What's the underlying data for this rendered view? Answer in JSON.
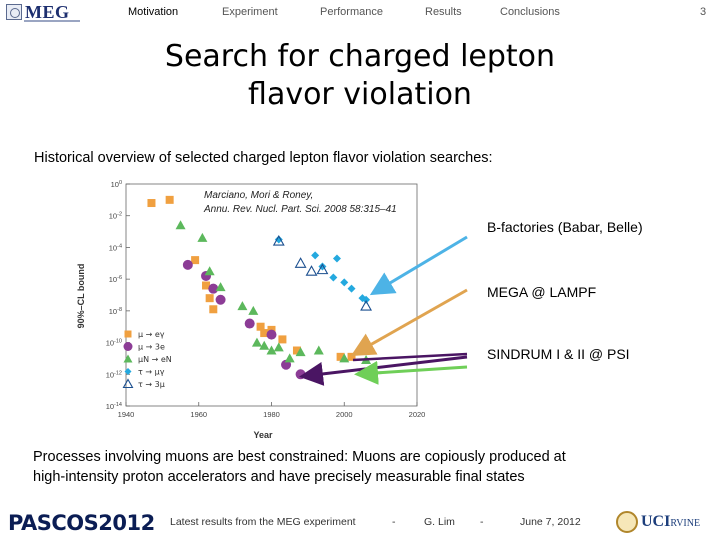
{
  "logo": {
    "text": "MEG"
  },
  "nav": [
    "Motivation",
    "Experiment",
    "Performance",
    "Results",
    "Conclusions"
  ],
  "page_number": "3",
  "title_lines": [
    "Search for charged lepton",
    "flavor violation"
  ],
  "subtitle": "Historical overview of selected charged lepton flavor violation searches:",
  "labels": {
    "bfactories": "B-factories (Babar, Belle)",
    "mega": "MEGA @ LAMPF",
    "sindrum": "SINDRUM I & II @ PSI"
  },
  "colors": {
    "bfactories_arrow": "#4db3e6",
    "mega_arrow": "#e0a450",
    "sindrum_arrow": "#6fcf58",
    "meg_arrow": "#4a1563",
    "mu_egamma": "#f0a040",
    "mu_3e": "#8c3c96",
    "mu_n_en": "#5cb85c",
    "tau_mugamma": "#24a9df",
    "tau_3mu": "#24a9df"
  },
  "chart_data": {
    "type": "scatter",
    "title": "",
    "citation": [
      "Marciano, Mori & Roney,",
      "Annu. Rev. Nucl. Part. Sci. 2008 58:315–41"
    ],
    "xlabel": "Year",
    "ylabel": "90%–CL bound",
    "xlim": [
      1940,
      2020
    ],
    "ylim_log10": [
      -14,
      0
    ],
    "x_ticks": [
      "1940",
      "1960",
      "1980",
      "2000",
      "2020"
    ],
    "y_ticks": [
      "10^0",
      "10^-2",
      "10^-4",
      "10^-6",
      "10^-8",
      "10^-10",
      "10^-12",
      "10^-14"
    ],
    "legend": [
      {
        "symbol": "square",
        "text": "μ → eγ"
      },
      {
        "symbol": "circle",
        "text": "μ → 3e"
      },
      {
        "symbol": "triangle",
        "text": "μN → eN"
      },
      {
        "symbol": "diamond",
        "text": "τ → μγ"
      },
      {
        "symbol": "open-triangle",
        "text": "τ → 3μ"
      }
    ],
    "series": [
      {
        "name": "μ → eγ",
        "symbol": "square",
        "points": [
          [
            1947,
            -1.2
          ],
          [
            1952,
            -1.0
          ],
          [
            1959,
            -4.8
          ],
          [
            1962,
            -6.4
          ],
          [
            1963,
            -7.2
          ],
          [
            1964,
            -7.9
          ],
          [
            1977,
            -9.0
          ],
          [
            1978,
            -9.4
          ],
          [
            1980,
            -9.2
          ],
          [
            1983,
            -9.8
          ],
          [
            1987,
            -10.5
          ],
          [
            1999,
            -10.9
          ],
          [
            2002,
            -10.9
          ]
        ]
      },
      {
        "name": "μ → 3e",
        "symbol": "circle",
        "points": [
          [
            1957,
            -5.1
          ],
          [
            1962,
            -5.8
          ],
          [
            1964,
            -6.6
          ],
          [
            1966,
            -7.3
          ],
          [
            1974,
            -8.8
          ],
          [
            1980,
            -9.5
          ],
          [
            1984,
            -11.4
          ],
          [
            1988,
            -12.0
          ]
        ]
      },
      {
        "name": "μN → eN",
        "symbol": "triangle",
        "points": [
          [
            1955,
            -2.6
          ],
          [
            1961,
            -3.4
          ],
          [
            1963,
            -5.5
          ],
          [
            1966,
            -6.5
          ],
          [
            1972,
            -7.7
          ],
          [
            1975,
            -8.0
          ],
          [
            1976,
            -10.0
          ],
          [
            1978,
            -10.2
          ],
          [
            1980,
            -10.5
          ],
          [
            1982,
            -10.3
          ],
          [
            1985,
            -11.0
          ],
          [
            1988,
            -10.6
          ],
          [
            1993,
            -10.5
          ],
          [
            2000,
            -11.0
          ],
          [
            2006,
            -11.1
          ]
        ]
      },
      {
        "name": "τ → μγ",
        "symbol": "diamond",
        "points": [
          [
            1982,
            -3.5
          ],
          [
            1992,
            -4.5
          ],
          [
            1994,
            -5.2
          ],
          [
            1997,
            -5.9
          ],
          [
            1998,
            -4.7
          ],
          [
            2000,
            -6.2
          ],
          [
            2002,
            -6.6
          ],
          [
            2005,
            -7.2
          ],
          [
            2006,
            -7.3
          ]
        ]
      },
      {
        "name": "τ → 3μ",
        "symbol": "open-triangle",
        "points": [
          [
            1982,
            -3.6
          ],
          [
            1988,
            -5.0
          ],
          [
            1991,
            -5.5
          ],
          [
            1994,
            -5.4
          ],
          [
            2006,
            -7.7
          ]
        ]
      }
    ]
  },
  "footnote_lines": [
    "Processes involving muons are best constrained: Muons are copiously produced at",
    "high-intensity proton accelerators and have precisely measurable final states"
  ],
  "footer": {
    "conference": "PASCOS",
    "conference_year": "2012",
    "talk": "Latest results from the MEG experiment",
    "sep1": "-",
    "author": "G. Lim",
    "sep2": "-",
    "date": "June 7, 2012",
    "uci": "UCI",
    "uci_sub": "RVINE"
  }
}
